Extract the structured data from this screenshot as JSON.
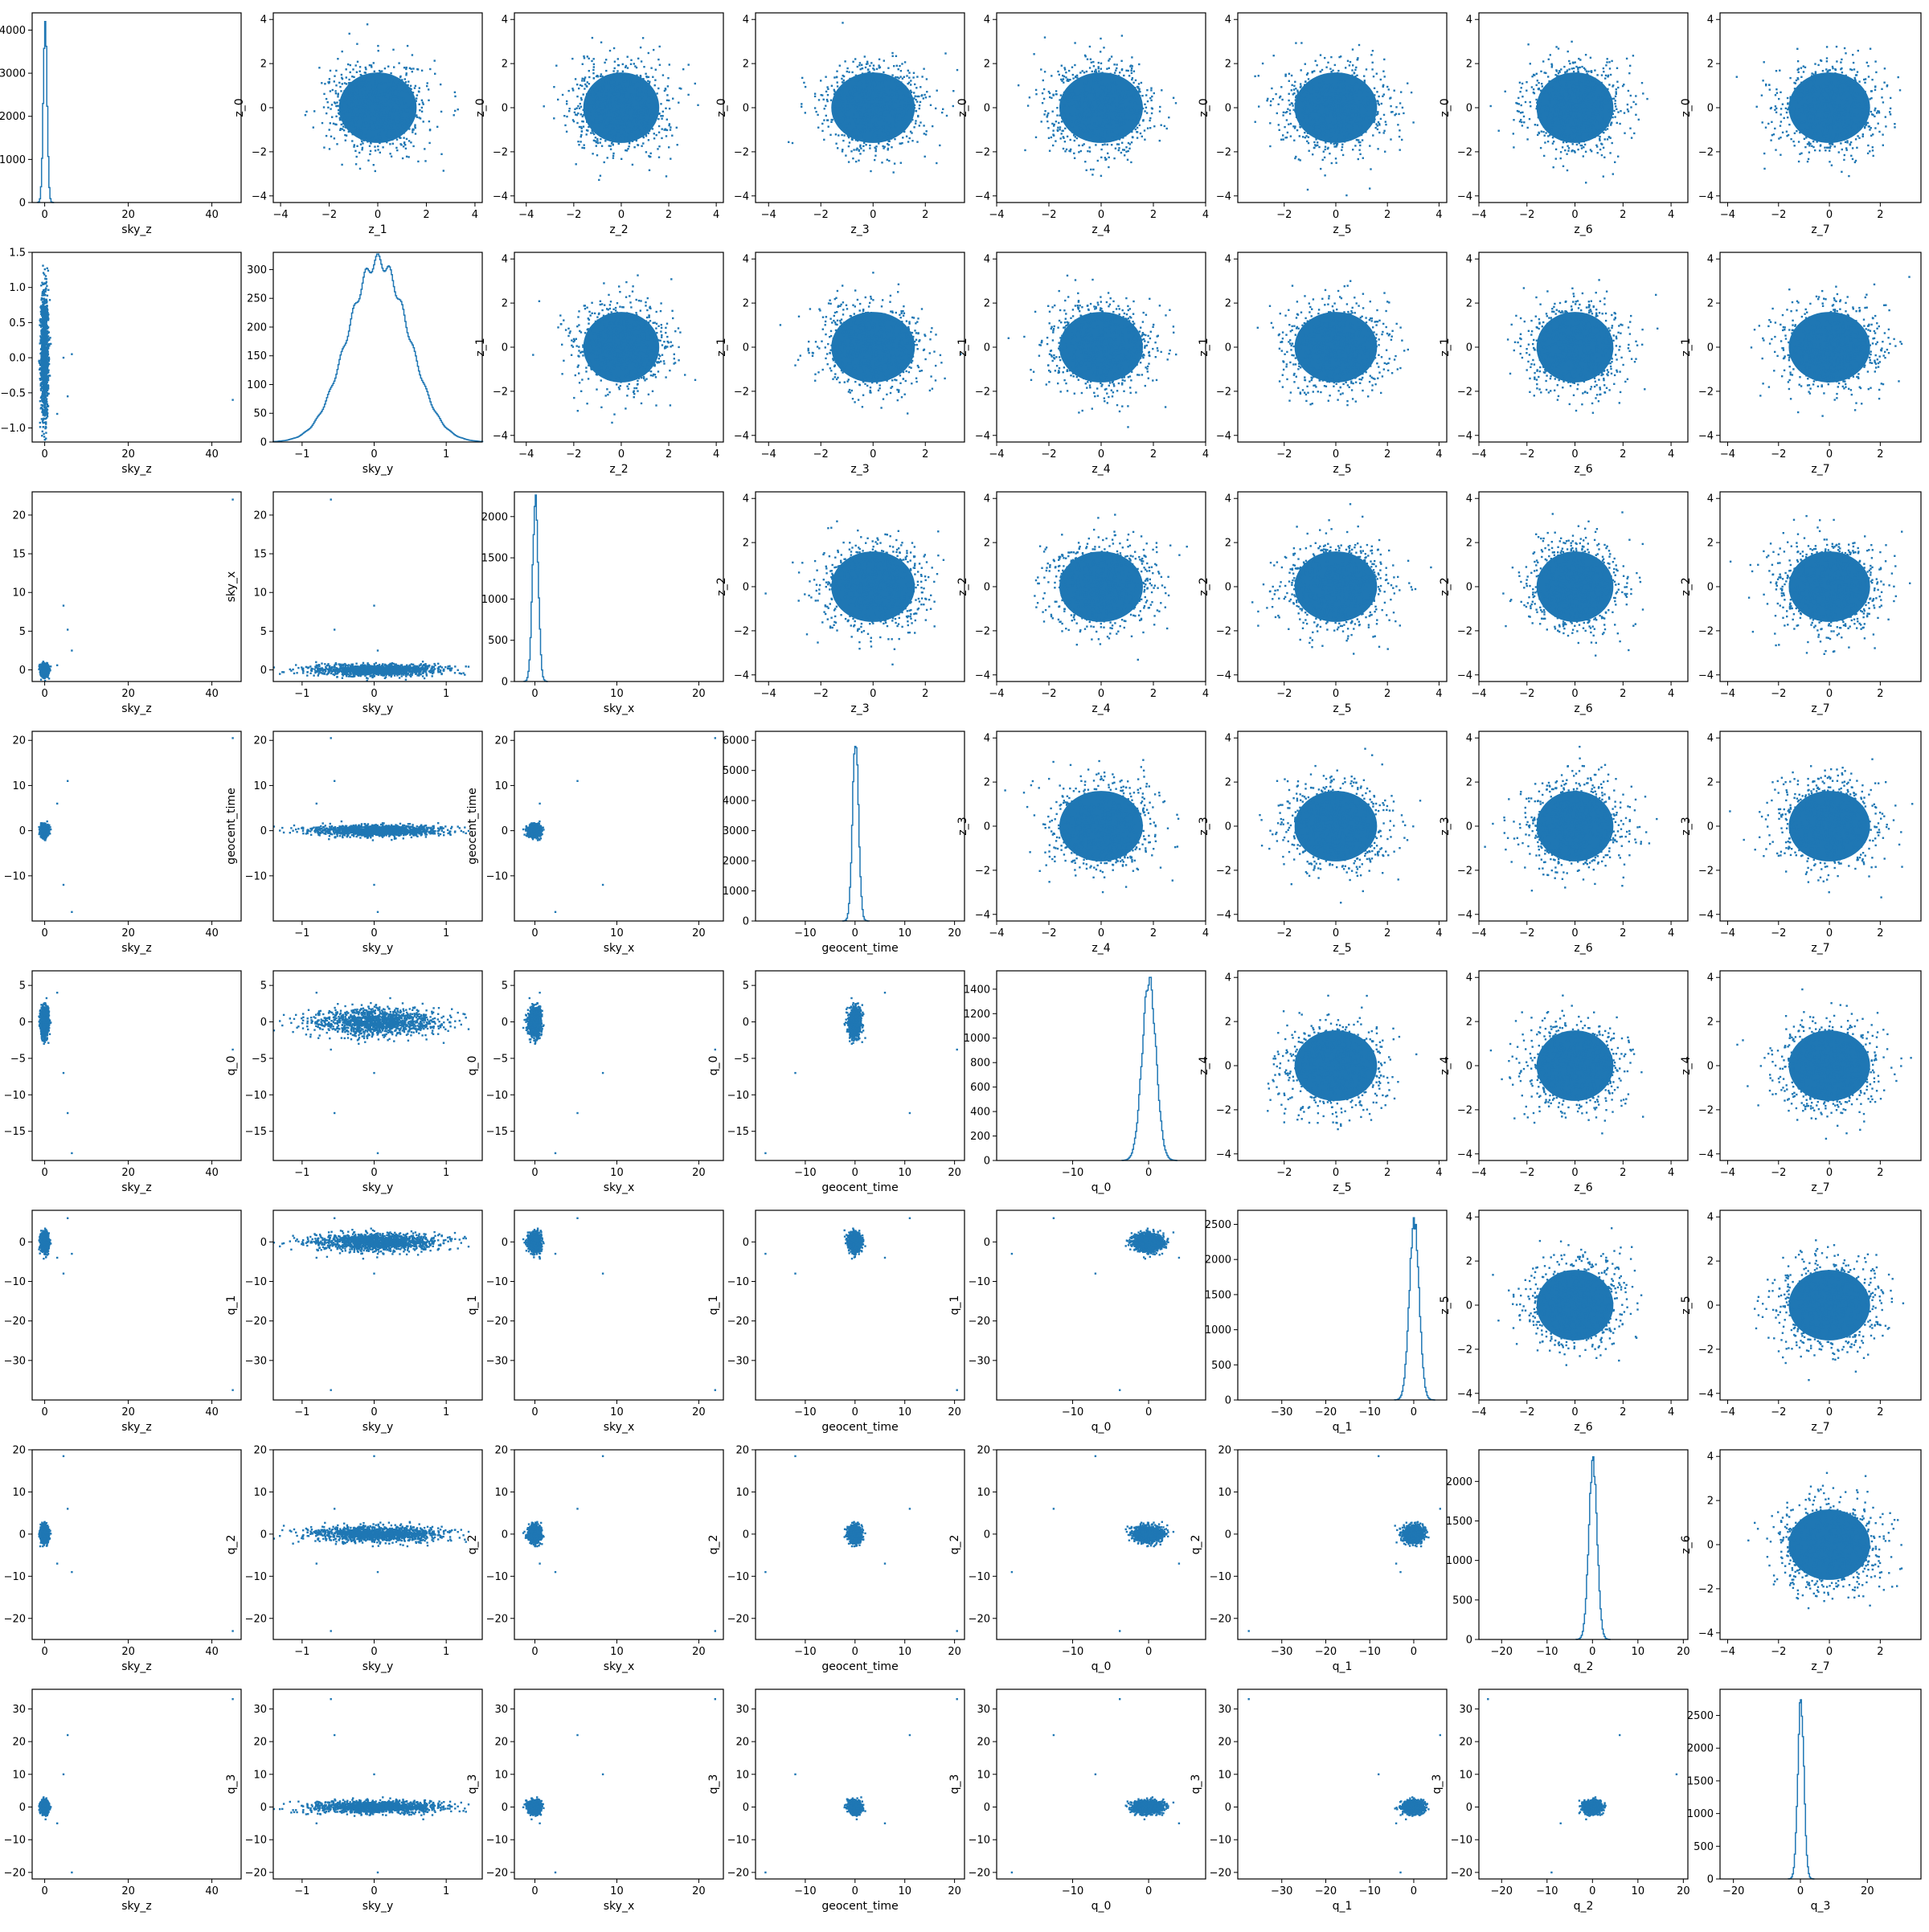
{
  "figure": {
    "description": "",
    "marker_color": "#1f77b4",
    "axis_color": "#000000"
  },
  "chart_data": {
    "type": "scatter",
    "layout": "lower-triangle scatter-matrix with diagonal histograms, upper triangle z-latent scatter panels",
    "variables": [
      "sky_z",
      "sky_y",
      "sky_x",
      "geocent_time",
      "q_0",
      "q_1",
      "q_2",
      "q_3"
    ],
    "latent_variables": [
      "z_0",
      "z_1",
      "z_2",
      "z_3",
      "z_4",
      "z_5",
      "z_6",
      "z_7"
    ],
    "var_xlim": {
      "sky_z": [
        -3,
        47
      ],
      "sky_y": [
        -1.4,
        1.5
      ],
      "sky_x": [
        -2.5,
        23
      ],
      "geocent_time": [
        -20,
        22
      ],
      "q_0": [
        -20,
        7.5
      ],
      "q_1": [
        -40,
        7.5
      ],
      "q_2": [
        -25,
        21
      ],
      "q_3": [
        -24,
        36
      ]
    },
    "var_ylim": {
      "sky_y": [
        -1.2,
        1.5
      ],
      "sky_x": [
        -1.5,
        23
      ],
      "geocent_time": [
        -20,
        22
      ],
      "q_0": [
        -19,
        7
      ],
      "q_1": [
        -40,
        8
      ],
      "q_2": [
        -25,
        20
      ],
      "q_3": [
        -22,
        36
      ]
    },
    "var_ticks": {
      "sky_z": [
        0,
        20,
        40
      ],
      "sky_y": [
        -1,
        0,
        1
      ],
      "sky_x": [
        0,
        10,
        20
      ],
      "geocent_time": [
        -10,
        0,
        10,
        20
      ],
      "q_0": [
        -10,
        0
      ],
      "q_1": [
        -30,
        -20,
        -10,
        0
      ],
      "q_2": [
        -20,
        -10,
        0,
        10,
        20
      ],
      "q_3": [
        -20,
        0,
        20
      ]
    },
    "var_yticks": {
      "sky_y": [
        -1.0,
        -0.5,
        0.0,
        0.5,
        1.0,
        1.5
      ],
      "sky_x": [
        0,
        5,
        10,
        15,
        20
      ],
      "geocent_time": [
        -10,
        0,
        10,
        20
      ],
      "q_0": [
        -15,
        -10,
        -5,
        0,
        5
      ],
      "q_1": [
        -30,
        -20,
        -10,
        0
      ],
      "q_2": [
        -20,
        -10,
        0,
        10,
        20
      ],
      "q_3": [
        -20,
        -10,
        0,
        10,
        20,
        30
      ]
    },
    "var_ytick_labels": {
      "sky_y": [
        "−1.0",
        "−0.5",
        "0.0",
        "0.5",
        "1.0",
        "1.5"
      ],
      "sky_x": [
        "0",
        "5",
        "10",
        "15",
        "20"
      ],
      "geocent_time": [
        "−10",
        "0",
        "10",
        "20"
      ],
      "q_0": [
        "−15",
        "−10",
        "−5",
        "0",
        "5"
      ],
      "q_1": [
        "−30",
        "−20",
        "−10",
        "0"
      ],
      "q_2": [
        "−20",
        "−10",
        "0",
        "10",
        "20"
      ],
      "q_3": [
        "−20",
        "−10",
        "0",
        "10",
        "20",
        "30"
      ]
    },
    "var_spread": {
      "sky_z": [
        0.0,
        0.45
      ],
      "sky_y": [
        0.05,
        0.42
      ],
      "sky_x": [
        0.0,
        0.35
      ],
      "geocent_time": [
        0.0,
        0.6
      ],
      "q_0": [
        0.0,
        0.9
      ],
      "q_1": [
        0.0,
        1.1
      ],
      "q_2": [
        0.0,
        0.9
      ],
      "q_3": [
        0.0,
        0.9
      ]
    },
    "outliers": [
      {
        "sky_z": 45,
        "sky_y": -0.6,
        "sky_x": 22,
        "geocent_time": 20.5,
        "q_0": -3.8,
        "q_1": -37.5,
        "q_2": -23,
        "q_3": 33
      },
      {
        "sky_z": 5.5,
        "sky_y": -0.55,
        "sky_x": 5.2,
        "geocent_time": 11.0,
        "q_0": -12.5,
        "q_1": 6,
        "q_2": 6,
        "q_3": 22
      },
      {
        "sky_z": 4.5,
        "sky_y": 0.0,
        "sky_x": 8.3,
        "geocent_time": -12,
        "q_0": -7,
        "q_1": -8,
        "q_2": 18.5,
        "q_3": 10
      },
      {
        "sky_z": 6.5,
        "sky_y": 0.05,
        "sky_x": 2.5,
        "geocent_time": -18,
        "q_0": -18,
        "q_1": -3,
        "q_2": -9,
        "q_3": -20
      },
      {
        "sky_z": 3,
        "sky_y": -0.8,
        "sky_x": 0.6,
        "geocent_time": 6,
        "q_0": 4,
        "q_1": -4,
        "q_2": -7,
        "q_3": -5
      }
    ],
    "latent_xlim": {
      "z_1": [
        -4.3,
        4.3
      ],
      "z_2": [
        -4.5,
        4.3
      ],
      "z_3": [
        -4.5,
        3.5
      ],
      "z_4": [
        -4.0,
        4.0
      ],
      "z_5": [
        -3.8,
        4.3
      ],
      "z_6": [
        -4.0,
        4.7
      ],
      "z_7": [
        -4.3,
        3.6
      ]
    },
    "latent_xticks": {
      "z_1": [
        -4,
        -2,
        0,
        2,
        4
      ],
      "z_2": [
        -4,
        -2,
        0,
        2,
        4
      ],
      "z_3": [
        -4,
        -2,
        0,
        2
      ],
      "z_4": [
        -4,
        -2,
        0,
        2,
        4
      ],
      "z_5": [
        -2,
        0,
        2,
        4
      ],
      "z_6": [
        -4,
        -2,
        0,
        2,
        4
      ],
      "z_7": [
        -4,
        -2,
        0,
        2
      ]
    },
    "latent_ylim": [
      -4.3,
      4.3
    ],
    "latent_yticks": [
      -4,
      -2,
      0,
      2,
      4
    ],
    "diag_hist": {
      "sky_z": {
        "ylim": [
          0,
          4400
        ],
        "yticks": [
          0,
          1000,
          2000,
          3000,
          4000
        ],
        "peak": 4200
      },
      "sky_y": {
        "ylim": [
          0,
          330
        ],
        "yticks": [
          0,
          50,
          100,
          150,
          200,
          250,
          300
        ],
        "peak": 315
      },
      "sky_x": {
        "ylim": [
          0,
          2300
        ],
        "yticks": [
          0,
          500,
          1000,
          1500,
          2000
        ],
        "peak": 2200
      },
      "geocent_time": {
        "ylim": [
          0,
          6300
        ],
        "yticks": [
          0,
          1000,
          2000,
          3000,
          4000,
          5000,
          6000
        ],
        "peak": 6050
      },
      "q_0": {
        "ylim": [
          0,
          1550
        ],
        "yticks": [
          0,
          200,
          400,
          600,
          800,
          1000,
          1200,
          1400
        ],
        "peak": 1480
      },
      "q_1": {
        "ylim": [
          0,
          2700
        ],
        "yticks": [
          0,
          500,
          1000,
          1500,
          2000,
          2500
        ],
        "peak": 2550
      },
      "q_2": {
        "ylim": [
          0,
          2400
        ],
        "yticks": [
          0,
          500,
          1000,
          1500,
          2000
        ],
        "peak": 2270
      },
      "q_3": {
        "ylim": [
          0,
          2900
        ],
        "yticks": [
          0,
          500,
          1000,
          1500,
          2000,
          2500
        ],
        "peak": 2740
      }
    },
    "grid": false,
    "legend": "none"
  }
}
